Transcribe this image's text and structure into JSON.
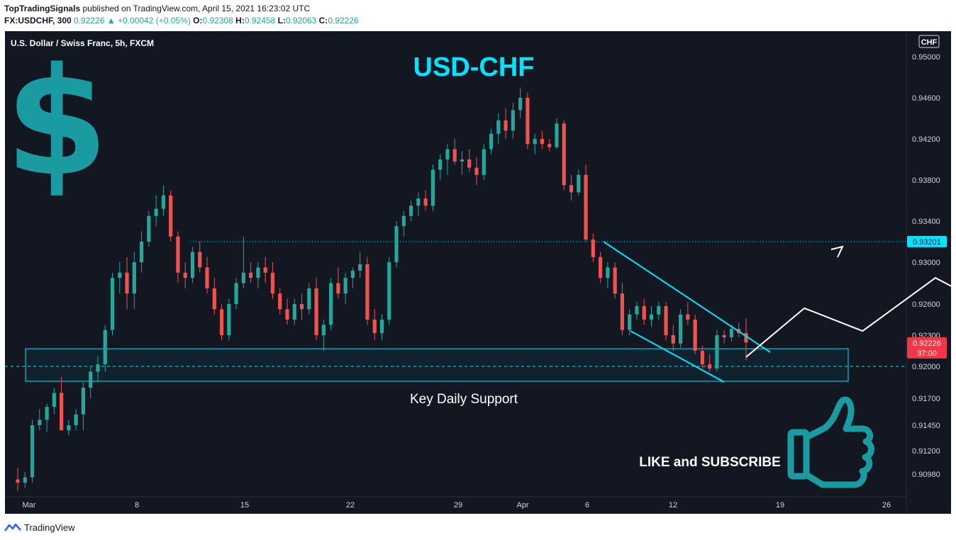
{
  "header": {
    "author": "TopTradingSignals",
    "published_text": "published on TradingView.com, April 15, 2021 16:23:02 UTC",
    "symbol": "FX:USDCHF, 300",
    "last": "0.92226",
    "change": "+0.00042 (+0.05%)",
    "o_label": "O:",
    "o_value": "0.92308",
    "h_label": "H:",
    "h_value": "0.92458",
    "l_label": "L:",
    "l_value": "0.92063",
    "c_label": "C:",
    "c_value": "0.92226"
  },
  "chart_data": {
    "type": "candlestick",
    "instrument": "U.S. Dollar / Swiss Franc, 5h, FXCM",
    "currency_badge": "CHF",
    "title": "USD-CHF",
    "y_ticks": [
      "0.95000",
      "0.94600",
      "0.94200",
      "0.93800",
      "0.93400",
      "0.93000",
      "0.92600",
      "0.92300",
      "0.92000",
      "0.91700",
      "0.91450",
      "0.91200",
      "0.90980"
    ],
    "x_ticks": [
      "Mar",
      "8",
      "15",
      "22",
      "29",
      "Apr",
      "6",
      "12",
      "19",
      "26"
    ],
    "resistance_level": "0.93201",
    "current_price": "0.92226",
    "countdown": "37:00",
    "support_zone_label": "Key Daily Support",
    "support_zone": [
      0.9186,
      0.9217
    ],
    "path": [
      [
        0.9093,
        0.9104,
        0.9082,
        0.909
      ],
      [
        0.909,
        0.91,
        0.9085,
        0.9095
      ],
      [
        0.9095,
        0.915,
        0.909,
        0.9145
      ],
      [
        0.9145,
        0.916,
        0.914,
        0.915
      ],
      [
        0.915,
        0.9165,
        0.9138,
        0.9162
      ],
      [
        0.9162,
        0.918,
        0.9155,
        0.9175
      ],
      [
        0.9175,
        0.919,
        0.915,
        0.914
      ],
      [
        0.914,
        0.915,
        0.9135,
        0.9145
      ],
      [
        0.9145,
        0.916,
        0.914,
        0.9155
      ],
      [
        0.9155,
        0.9185,
        0.914,
        0.918
      ],
      [
        0.918,
        0.92,
        0.917,
        0.9195
      ],
      [
        0.9195,
        0.921,
        0.9185,
        0.9202
      ],
      [
        0.9202,
        0.924,
        0.9195,
        0.9235
      ],
      [
        0.9235,
        0.929,
        0.923,
        0.9285
      ],
      [
        0.9285,
        0.93,
        0.927,
        0.929
      ],
      [
        0.929,
        0.9305,
        0.9255,
        0.927
      ],
      [
        0.927,
        0.931,
        0.9255,
        0.93
      ],
      [
        0.93,
        0.933,
        0.929,
        0.932
      ],
      [
        0.932,
        0.935,
        0.9315,
        0.9345
      ],
      [
        0.9345,
        0.9365,
        0.9335,
        0.9352
      ],
      [
        0.9352,
        0.9375,
        0.9345,
        0.9365
      ],
      [
        0.9365,
        0.937,
        0.932,
        0.9325
      ],
      [
        0.9325,
        0.933,
        0.928,
        0.929
      ],
      [
        0.929,
        0.93,
        0.9275,
        0.9285
      ],
      [
        0.9285,
        0.9315,
        0.928,
        0.931
      ],
      [
        0.931,
        0.932,
        0.929,
        0.9295
      ],
      [
        0.9295,
        0.9305,
        0.927,
        0.9275
      ],
      [
        0.9275,
        0.9285,
        0.925,
        0.9255
      ],
      [
        0.9255,
        0.926,
        0.9225,
        0.923
      ],
      [
        0.923,
        0.9265,
        0.9225,
        0.926
      ],
      [
        0.926,
        0.9285,
        0.9255,
        0.928
      ],
      [
        0.928,
        0.9325,
        0.9275,
        0.929
      ],
      [
        0.929,
        0.93,
        0.928,
        0.9285
      ],
      [
        0.9285,
        0.93,
        0.9275,
        0.9295
      ],
      [
        0.9295,
        0.9305,
        0.928,
        0.929
      ],
      [
        0.929,
        0.93,
        0.9265,
        0.927
      ],
      [
        0.927,
        0.9275,
        0.925,
        0.9255
      ],
      [
        0.9255,
        0.9265,
        0.924,
        0.9245
      ],
      [
        0.9245,
        0.9265,
        0.924,
        0.926
      ],
      [
        0.926,
        0.927,
        0.9245,
        0.9255
      ],
      [
        0.9255,
        0.928,
        0.925,
        0.9275
      ],
      [
        0.9275,
        0.9285,
        0.9225,
        0.923
      ],
      [
        0.923,
        0.9245,
        0.9215,
        0.924
      ],
      [
        0.924,
        0.9285,
        0.9235,
        0.928
      ],
      [
        0.928,
        0.9295,
        0.9265,
        0.927
      ],
      [
        0.927,
        0.929,
        0.926,
        0.9285
      ],
      [
        0.9285,
        0.9295,
        0.9275,
        0.9292
      ],
      [
        0.9292,
        0.931,
        0.9285,
        0.9298
      ],
      [
        0.9298,
        0.9305,
        0.924,
        0.9245
      ],
      [
        0.9245,
        0.9255,
        0.9225,
        0.9232
      ],
      [
        0.9232,
        0.925,
        0.9225,
        0.9245
      ],
      [
        0.9245,
        0.9305,
        0.924,
        0.93
      ],
      [
        0.93,
        0.934,
        0.9295,
        0.9335
      ],
      [
        0.9335,
        0.935,
        0.9325,
        0.9345
      ],
      [
        0.9345,
        0.936,
        0.934,
        0.9355
      ],
      [
        0.9355,
        0.9368,
        0.9345,
        0.9362
      ],
      [
        0.9362,
        0.937,
        0.935,
        0.9355
      ],
      [
        0.9355,
        0.9395,
        0.935,
        0.939
      ],
      [
        0.939,
        0.9405,
        0.938,
        0.94
      ],
      [
        0.94,
        0.9415,
        0.9385,
        0.941
      ],
      [
        0.941,
        0.942,
        0.9395,
        0.9398
      ],
      [
        0.9398,
        0.9408,
        0.9385,
        0.94
      ],
      [
        0.94,
        0.941,
        0.9388,
        0.9392
      ],
      [
        0.9392,
        0.9402,
        0.9375,
        0.9385
      ],
      [
        0.9385,
        0.9415,
        0.938,
        0.941
      ],
      [
        0.941,
        0.943,
        0.9405,
        0.9425
      ],
      [
        0.9425,
        0.9445,
        0.9415,
        0.9438
      ],
      [
        0.9438,
        0.945,
        0.942,
        0.9428
      ],
      [
        0.9428,
        0.9455,
        0.942,
        0.9448
      ],
      [
        0.9448,
        0.947,
        0.944,
        0.946
      ],
      [
        0.946,
        0.9465,
        0.941,
        0.9415
      ],
      [
        0.9415,
        0.9425,
        0.9405,
        0.942
      ],
      [
        0.942,
        0.9428,
        0.941,
        0.9415
      ],
      [
        0.9415,
        0.942,
        0.9408,
        0.9412
      ],
      [
        0.9412,
        0.944,
        0.941,
        0.9435
      ],
      [
        0.9435,
        0.9438,
        0.937,
        0.9375
      ],
      [
        0.9375,
        0.9385,
        0.936,
        0.9368
      ],
      [
        0.9368,
        0.939,
        0.9365,
        0.9385
      ],
      [
        0.9385,
        0.9395,
        0.932,
        0.9322
      ],
      [
        0.9322,
        0.9328,
        0.93,
        0.9305
      ],
      [
        0.9305,
        0.931,
        0.928,
        0.9285
      ],
      [
        0.9285,
        0.93,
        0.9275,
        0.9295
      ],
      [
        0.9295,
        0.93,
        0.9265,
        0.927
      ],
      [
        0.927,
        0.928,
        0.923,
        0.9235
      ],
      [
        0.9235,
        0.9255,
        0.923,
        0.925
      ],
      [
        0.925,
        0.9262,
        0.9245,
        0.9258
      ],
      [
        0.9258,
        0.9265,
        0.924,
        0.9245
      ],
      [
        0.9245,
        0.9258,
        0.9238,
        0.925
      ],
      [
        0.925,
        0.9262,
        0.9245,
        0.9258
      ],
      [
        0.9258,
        0.9262,
        0.9225,
        0.923
      ],
      [
        0.923,
        0.924,
        0.9215,
        0.9222
      ],
      [
        0.9222,
        0.9255,
        0.9218,
        0.925
      ],
      [
        0.925,
        0.9262,
        0.924,
        0.9245
      ],
      [
        0.9245,
        0.925,
        0.9212,
        0.9215
      ],
      [
        0.9215,
        0.922,
        0.9198,
        0.9202
      ],
      [
        0.9202,
        0.9212,
        0.9195,
        0.9198
      ],
      [
        0.9198,
        0.9235,
        0.9195,
        0.923
      ],
      [
        0.923,
        0.9235,
        0.9222,
        0.9228
      ],
      [
        0.9228,
        0.924,
        0.9224,
        0.9236
      ],
      [
        0.9236,
        0.9242,
        0.9228,
        0.9232
      ],
      [
        0.9232,
        0.9246,
        0.9206,
        0.9223
      ]
    ],
    "projection": [
      [
        0.9209,
        0
      ],
      [
        0.9256,
        8
      ],
      [
        0.9234,
        16
      ],
      [
        0.9285,
        26
      ],
      [
        0.9256,
        34
      ],
      [
        0.932,
        49
      ]
    ]
  },
  "annotations": {
    "like_subscribe": "LIKE and SUBSCRIBE",
    "dollar_symbol": "$",
    "dollar_icon": "dollar-icon",
    "thumbs_icon": "thumbs-up-icon"
  },
  "colors": {
    "up": "#26a69a",
    "down": "#ef5350",
    "accent": "#00e5ff",
    "teal": "#1a9ba1",
    "background": "#131722",
    "price_tag": "#f23645"
  },
  "footer": {
    "brand": "TradingView",
    "logo_icon": "tradingview-logo-icon"
  }
}
